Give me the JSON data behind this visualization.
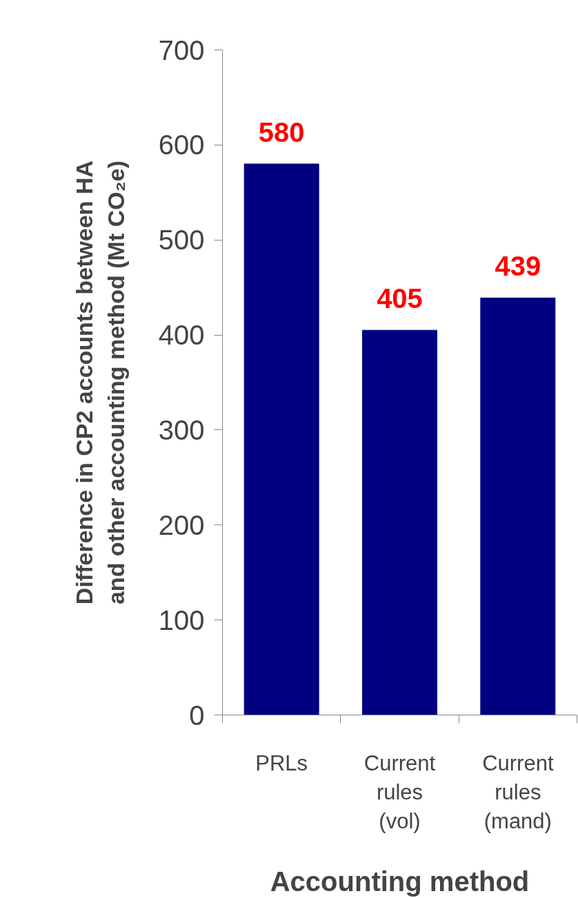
{
  "chart_data": {
    "type": "bar",
    "categories": [
      "PRLs",
      "Current\nrules\n(vol)",
      "Current\nrules\n(mand)"
    ],
    "values": [
      580,
      405,
      439
    ],
    "color": "#000080",
    "data_labels": true,
    "xlabel": "Accounting method",
    "ylabel": "Difference in CP2 accounts between HA and other accounting method (Mt CO₂e)",
    "ylim": [
      0,
      700
    ],
    "yticks": [
      0,
      100,
      200,
      300,
      400,
      500,
      600,
      700
    ],
    "grid": false
  }
}
